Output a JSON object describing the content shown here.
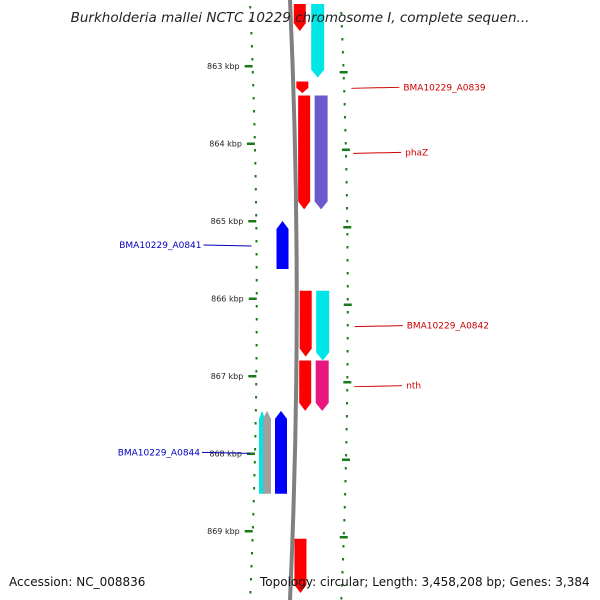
{
  "title": "Burkholderia mallei NCTC 10229 chromosome I, complete sequen...",
  "footer": {
    "accession": "Accession: NC_008836",
    "topology": "Topology: circular; Length: 3,458,208 bp; Genes: 3,384"
  },
  "colors": {
    "backbone": "#808080",
    "forward_label": "#cc0000",
    "reverse_label": "#0000bb",
    "tick": "#1a7a1a",
    "red": "#ff0000",
    "cyan": "#00e5e5",
    "purple": "#6a5acd",
    "blue": "#0000ff",
    "magenta": "#e8177f",
    "grey": "#a0a0a0"
  },
  "scale": {
    "ticks": [
      {
        "kbp": 863,
        "label": "863 kbp"
      },
      {
        "kbp": 864,
        "label": "864 kbp"
      },
      {
        "kbp": 865,
        "label": "865 kbp"
      },
      {
        "kbp": 866,
        "label": "866 kbp"
      },
      {
        "kbp": 867,
        "label": "867 kbp"
      },
      {
        "kbp": 868,
        "label": "868 kbp"
      },
      {
        "kbp": 869,
        "label": "869 kbp"
      }
    ]
  },
  "genes": [
    {
      "name": "",
      "strand": "+",
      "start_kbp": 862.2,
      "end_kbp": 862.55,
      "color": "red"
    },
    {
      "name": "",
      "strand": "+",
      "start_kbp": 862.2,
      "end_kbp": 863.15,
      "color": "cyan"
    },
    {
      "name": "BMA10229_A0839",
      "strand": "+",
      "start_kbp": 863.2,
      "end_kbp": 863.35,
      "color": "red"
    },
    {
      "name": "phaZ",
      "strand": "+",
      "start_kbp": 863.38,
      "end_kbp": 864.85,
      "color": "red"
    },
    {
      "name": "",
      "strand": "+",
      "start_kbp": 863.38,
      "end_kbp": 864.85,
      "color": "purple"
    },
    {
      "name": "BMA10229_A0841",
      "strand": "-",
      "start_kbp": 865.0,
      "end_kbp": 865.62,
      "color": "blue"
    },
    {
      "name": "",
      "strand": "+",
      "start_kbp": 865.9,
      "end_kbp": 866.75,
      "color": "red"
    },
    {
      "name": "BMA10229_A0842",
      "strand": "+",
      "start_kbp": 865.9,
      "end_kbp": 866.8,
      "color": "cyan"
    },
    {
      "name": "nth",
      "strand": "+",
      "start_kbp": 866.8,
      "end_kbp": 867.45,
      "color": "red"
    },
    {
      "name": "",
      "strand": "+",
      "start_kbp": 866.8,
      "end_kbp": 867.45,
      "color": "magenta"
    },
    {
      "name": "",
      "strand": "-",
      "start_kbp": 867.45,
      "end_kbp": 868.52,
      "color": "cyan"
    },
    {
      "name": "",
      "strand": "-",
      "start_kbp": 867.45,
      "end_kbp": 868.52,
      "color": "grey"
    },
    {
      "name": "BMA10229_A0844",
      "strand": "-",
      "start_kbp": 867.45,
      "end_kbp": 868.52,
      "color": "blue"
    },
    {
      "name": "",
      "strand": "+",
      "start_kbp": 869.1,
      "end_kbp": 869.8,
      "color": "red"
    }
  ]
}
